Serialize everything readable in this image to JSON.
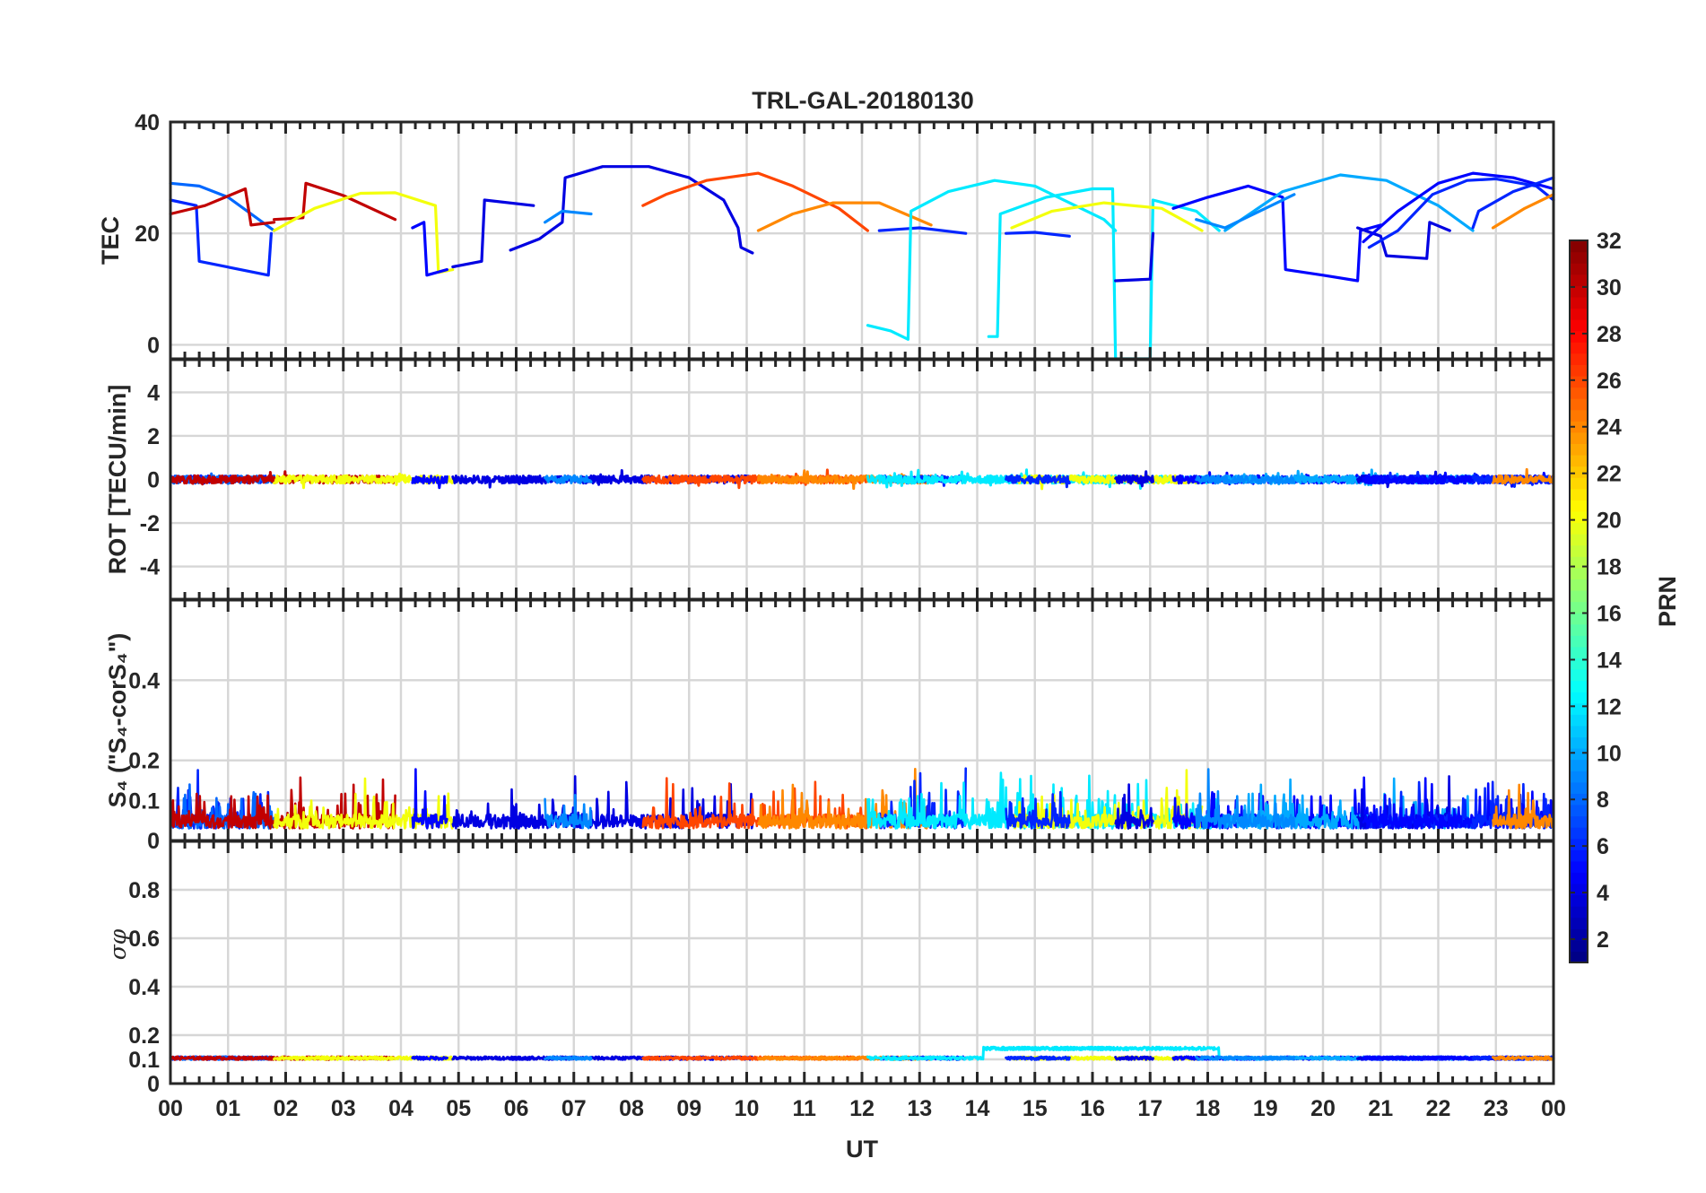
{
  "chart_data": {
    "type": "line",
    "title": "TRL-GAL-20180130",
    "xlabel": "UT",
    "x_range_hours": [
      0,
      24
    ],
    "x_tick_labels": [
      "00",
      "01",
      "02",
      "03",
      "04",
      "05",
      "06",
      "07",
      "08",
      "09",
      "10",
      "11",
      "12",
      "13",
      "14",
      "15",
      "16",
      "17",
      "18",
      "19",
      "20",
      "21",
      "22",
      "23",
      "00"
    ],
    "colorbar": {
      "label": "PRN",
      "range": [
        1,
        32
      ],
      "tick_labels": [
        "2",
        "4",
        "6",
        "8",
        "10",
        "12",
        "14",
        "16",
        "18",
        "20",
        "22",
        "24",
        "26",
        "28",
        "30",
        "32"
      ]
    },
    "panels": [
      {
        "id": "tec",
        "ylabel": "TEC",
        "ylim": [
          -2.5,
          40
        ],
        "ytick_labels": [
          "0",
          "20",
          "40"
        ],
        "series": [
          {
            "prn": 6,
            "points": [
              [
                0.0,
                26.0
              ],
              [
                0.45,
                25.0
              ],
              [
                0.5,
                15.0
              ],
              [
                1.7,
                12.5
              ],
              [
                1.75,
                20.0
              ]
            ]
          },
          {
            "prn": 8,
            "points": [
              [
                0.0,
                29.0
              ],
              [
                0.5,
                28.5
              ],
              [
                1.0,
                26.5
              ],
              [
                1.8,
                20.5
              ]
            ]
          },
          {
            "prn": 30,
            "points": [
              [
                0.0,
                23.5
              ],
              [
                0.6,
                25.0
              ],
              [
                1.3,
                28.0
              ],
              [
                1.4,
                21.5
              ],
              [
                1.8,
                22.0
              ]
            ]
          },
          {
            "prn": 30,
            "points": [
              [
                1.8,
                22.5
              ],
              [
                2.3,
                22.8
              ],
              [
                2.35,
                29.0
              ],
              [
                3.0,
                26.8
              ],
              [
                3.9,
                22.5
              ]
            ]
          },
          {
            "prn": 20,
            "points": [
              [
                1.8,
                20.5
              ],
              [
                2.5,
                24.5
              ],
              [
                3.3,
                27.2
              ],
              [
                3.9,
                27.3
              ],
              [
                4.6,
                25.0
              ],
              [
                4.65,
                13.0
              ],
              [
                4.9,
                13.5
              ]
            ]
          },
          {
            "prn": 5,
            "points": [
              [
                4.2,
                21.0
              ],
              [
                4.4,
                22.0
              ],
              [
                4.45,
                12.5
              ],
              [
                4.8,
                13.5
              ]
            ]
          },
          {
            "prn": 4,
            "points": [
              [
                4.9,
                14.0
              ],
              [
                5.4,
                15.0
              ],
              [
                5.45,
                26.0
              ],
              [
                6.3,
                25.0
              ]
            ]
          },
          {
            "prn": 4,
            "points": [
              [
                5.9,
                17.0
              ],
              [
                6.4,
                19.0
              ],
              [
                6.8,
                22.0
              ],
              [
                6.85,
                30.0
              ],
              [
                7.5,
                32.0
              ],
              [
                8.3,
                32.0
              ],
              [
                9.0,
                30.0
              ],
              [
                9.6,
                26.0
              ],
              [
                9.85,
                21.0
              ],
              [
                9.9,
                17.5
              ],
              [
                10.1,
                16.5
              ]
            ]
          },
          {
            "prn": 9,
            "points": [
              [
                6.5,
                22.0
              ],
              [
                6.8,
                24.0
              ],
              [
                7.3,
                23.5
              ]
            ]
          },
          {
            "prn": 26,
            "points": [
              [
                8.2,
                25.0
              ],
              [
                8.6,
                27.0
              ],
              [
                9.3,
                29.5
              ],
              [
                10.2,
                30.8
              ],
              [
                10.8,
                28.5
              ],
              [
                11.6,
                24.5
              ],
              [
                12.1,
                20.5
              ]
            ]
          },
          {
            "prn": 24,
            "points": [
              [
                10.2,
                20.5
              ],
              [
                10.8,
                23.5
              ],
              [
                11.5,
                25.5
              ],
              [
                12.3,
                25.5
              ],
              [
                13.2,
                21.5
              ]
            ]
          },
          {
            "prn": 6,
            "points": [
              [
                12.3,
                20.5
              ],
              [
                13.0,
                21.0
              ],
              [
                13.8,
                20.0
              ]
            ]
          },
          {
            "prn": 12,
            "points": [
              [
                12.1,
                3.5
              ],
              [
                12.5,
                2.5
              ],
              [
                12.8,
                1.0
              ],
              [
                12.85,
                24.0
              ],
              [
                13.5,
                27.5
              ],
              [
                14.3,
                29.5
              ],
              [
                15.0,
                28.5
              ],
              [
                16.2,
                22.5
              ],
              [
                16.4,
                20.5
              ]
            ]
          },
          {
            "prn": 12,
            "points": [
              [
                14.2,
                1.5
              ],
              [
                14.35,
                1.5
              ],
              [
                14.4,
                23.5
              ],
              [
                15.2,
                26.5
              ],
              [
                16.0,
                28.0
              ],
              [
                16.35,
                28.0
              ],
              [
                16.4,
                -2.5
              ],
              [
                17.0,
                -2.5
              ],
              [
                17.05,
                26.0
              ],
              [
                17.8,
                24.0
              ],
              [
                18.2,
                20.5
              ]
            ]
          },
          {
            "prn": 20,
            "points": [
              [
                14.6,
                21.0
              ],
              [
                15.3,
                24.0
              ],
              [
                16.2,
                25.5
              ],
              [
                17.2,
                24.5
              ],
              [
                17.9,
                20.5
              ]
            ]
          },
          {
            "prn": 6,
            "points": [
              [
                14.5,
                20.0
              ],
              [
                15.0,
                20.2
              ],
              [
                15.6,
                19.5
              ]
            ]
          },
          {
            "prn": 4,
            "points": [
              [
                16.4,
                11.5
              ],
              [
                17.0,
                11.8
              ],
              [
                17.05,
                20.0
              ]
            ]
          },
          {
            "prn": 5,
            "points": [
              [
                17.4,
                24.5
              ],
              [
                18.0,
                26.5
              ],
              [
                18.7,
                28.5
              ],
              [
                19.3,
                26.5
              ],
              [
                19.35,
                13.5
              ],
              [
                20.0,
                12.5
              ],
              [
                20.6,
                11.5
              ],
              [
                20.65,
                20.5
              ],
              [
                21.0,
                21.5
              ]
            ]
          },
          {
            "prn": 10,
            "points": [
              [
                18.3,
                20.5
              ],
              [
                19.3,
                27.5
              ],
              [
                20.3,
                30.5
              ],
              [
                21.1,
                29.5
              ],
              [
                22.0,
                25.0
              ],
              [
                22.6,
                20.5
              ]
            ]
          },
          {
            "prn": 9,
            "points": [
              [
                17.8,
                22.5
              ],
              [
                18.3,
                21.0
              ],
              [
                19.0,
                24.5
              ],
              [
                19.5,
                27.0
              ]
            ]
          },
          {
            "prn": 4,
            "points": [
              [
                20.6,
                21.0
              ],
              [
                21.0,
                19.5
              ],
              [
                21.1,
                16.0
              ],
              [
                21.8,
                15.5
              ],
              [
                21.85,
                22.0
              ],
              [
                22.2,
                20.5
              ]
            ]
          },
          {
            "prn": 6,
            "points": [
              [
                20.8,
                17.5
              ],
              [
                21.3,
                20.5
              ],
              [
                21.9,
                27.0
              ],
              [
                22.5,
                29.5
              ],
              [
                23.0,
                29.8
              ],
              [
                23.7,
                28.5
              ],
              [
                24.0,
                26.0
              ]
            ]
          },
          {
            "prn": 5,
            "points": [
              [
                20.7,
                18.5
              ],
              [
                21.3,
                24.0
              ],
              [
                22.0,
                29.0
              ],
              [
                22.6,
                30.8
              ],
              [
                23.3,
                30.0
              ],
              [
                24.0,
                28.0
              ]
            ]
          },
          {
            "prn": 6,
            "points": [
              [
                22.6,
                21.0
              ],
              [
                22.7,
                24.0
              ],
              [
                23.3,
                27.5
              ],
              [
                24.0,
                30.0
              ]
            ]
          },
          {
            "prn": 24,
            "points": [
              [
                22.95,
                21.0
              ],
              [
                23.5,
                24.5
              ],
              [
                24.0,
                27.0
              ]
            ]
          }
        ]
      },
      {
        "id": "rot",
        "ylabel": "ROT [TECU/min]",
        "ylim": [
          -5.5,
          5.5
        ],
        "ytick_labels": [
          "-4",
          "-2",
          "0",
          "2",
          "4"
        ],
        "summary": "All PRNs stay near 0 TECU/min across the day, within about ±0.4"
      },
      {
        "id": "s4",
        "ylabel": "S₄ (\"S₄-corS₄\")",
        "ylim": [
          0,
          0.6
        ],
        "ytick_labels": [
          "0",
          "0.1",
          "0.2",
          "0.4"
        ],
        "summary": "Background S4 around 0.03–0.08 with spikes up to about 0.18 near 13 UT"
      },
      {
        "id": "sigma_phi",
        "ylabel": "σφ",
        "ylim": [
          0,
          1.0
        ],
        "ytick_labels": [
          "0",
          "0.1",
          "0.2",
          "0.4",
          "0.6",
          "0.8"
        ],
        "summary": "Sigma-phi near 0.1 for all PRNs, slightly higher (~0.15) between 14 and 18 UT"
      }
    ]
  }
}
